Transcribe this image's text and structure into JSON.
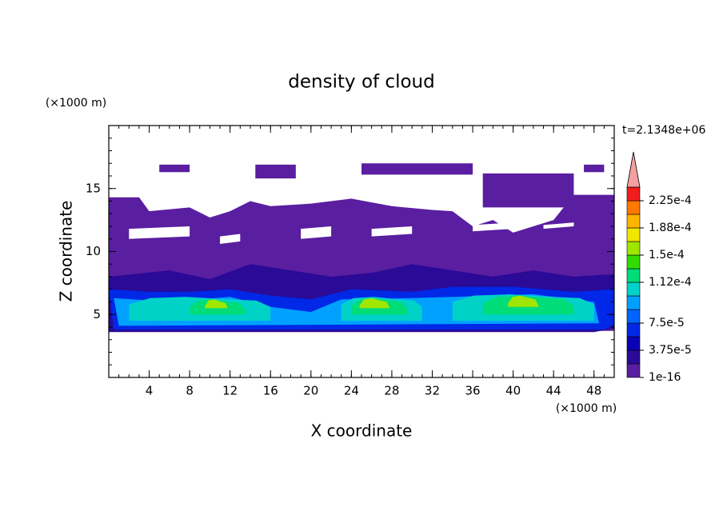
{
  "chart_data": {
    "type": "contour",
    "title": "density of cloud",
    "x_label": "X coordinate",
    "y_label": "Z coordinate",
    "x_unit": "(×1000 m)",
    "y_unit": "(×1000 m)",
    "time_label": "t=2.1348e+06",
    "xlim": [
      0,
      50
    ],
    "ylim": [
      0,
      20
    ],
    "xticks": [
      4,
      8,
      12,
      16,
      20,
      24,
      28,
      32,
      36,
      40,
      44,
      48
    ],
    "yticks": [
      5,
      10,
      15
    ],
    "colorbar": {
      "ticks": [
        {
          "value": 1e-16,
          "label": "1e-16"
        },
        {
          "value": 3.75e-05,
          "label": "3.75e-5"
        },
        {
          "value": 7.5e-05,
          "label": "7.5e-5"
        },
        {
          "value": 0.000112,
          "label": "1.12e-4"
        },
        {
          "value": 0.00015,
          "label": "1.5e-4"
        },
        {
          "value": 0.000188,
          "label": "1.88e-4"
        },
        {
          "value": 0.000225,
          "label": "2.25e-4"
        }
      ],
      "colors": [
        "#5a1ea0",
        "#2a0a96",
        "#0a00b4",
        "#0028e6",
        "#0064ff",
        "#00a0ff",
        "#00d2c8",
        "#00dc78",
        "#32dc00",
        "#a0e600",
        "#f0e600",
        "#ffb400",
        "#ff7800",
        "#f01e1e",
        "#f4a0a0"
      ]
    }
  }
}
